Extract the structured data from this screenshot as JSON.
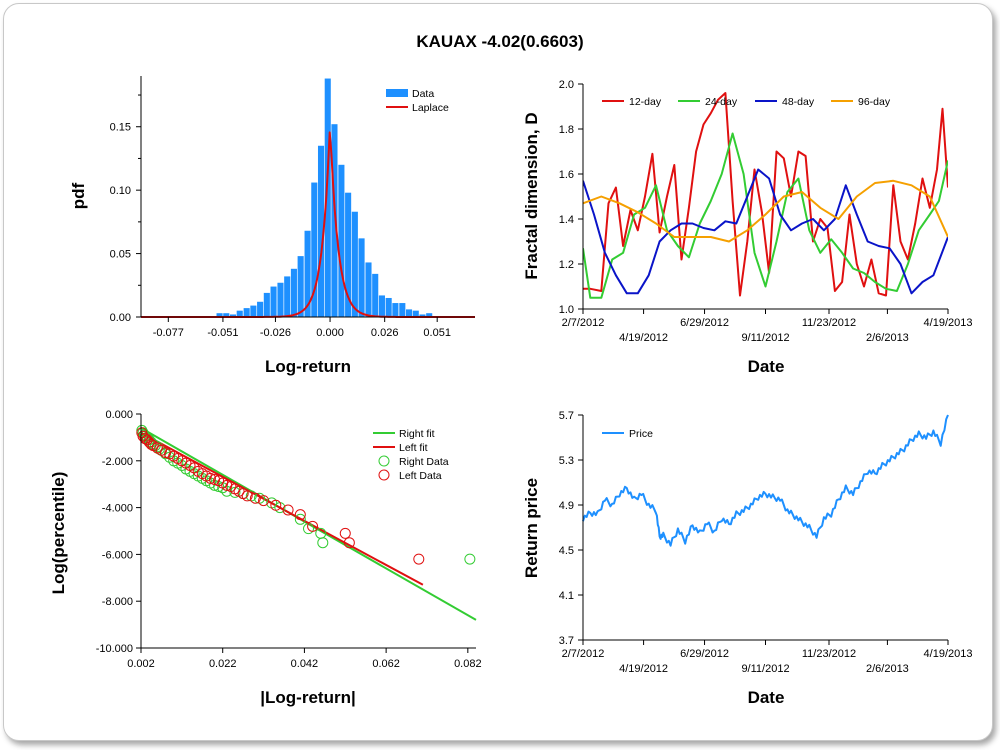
{
  "title": "KAUAX -4.02(0.6603)",
  "colors": {
    "data_bar": "#1e90ff",
    "laplace": "#e01010",
    "d12": "#e01010",
    "d24": "#33cc33",
    "d48": "#0a14c8",
    "d96": "#f5a000",
    "right": "#33cc33",
    "left": "#e01010",
    "price": "#1e90ff"
  },
  "chart_data": [
    {
      "id": "hist",
      "type": "bar",
      "xlabel": "Log-return",
      "ylabel": "pdf",
      "xlim": [
        -0.09,
        0.069
      ],
      "ylim": [
        0,
        0.19
      ],
      "x_ticks": [
        {
          "v": -0.077,
          "label": "-0.077"
        },
        {
          "v": -0.051,
          "label": "-0.051"
        },
        {
          "v": -0.026,
          "label": "-0.026"
        },
        {
          "v": 0.0,
          "label": "0.000"
        },
        {
          "v": 0.026,
          "label": "0.026"
        },
        {
          "v": 0.051,
          "label": "0.051"
        }
      ],
      "y_ticks": [
        {
          "v": 0,
          "label": "0.00"
        },
        {
          "v": 0.05,
          "label": "0.05"
        },
        {
          "v": 0.1,
          "label": "0.10"
        },
        {
          "v": 0.15,
          "label": "0.15"
        }
      ],
      "legend": [
        "Data",
        "Laplace"
      ],
      "bin_width": 0.00322,
      "bins_x": [
        -0.0526,
        -0.0494,
        -0.0462,
        -0.043,
        -0.0397,
        -0.0365,
        -0.0333,
        -0.0301,
        -0.0269,
        -0.0236,
        -0.0204,
        -0.0172,
        -0.014,
        -0.0107,
        -0.0075,
        -0.0043,
        -0.0011,
        0.0021,
        0.0054,
        0.0086,
        0.0118,
        0.015,
        0.0183,
        0.0215,
        0.0247,
        0.0279,
        0.0311,
        0.0344,
        0.0376,
        0.0408,
        0.044,
        0.0472
      ],
      "bins_y": [
        0.003,
        0.003,
        0.002,
        0.005,
        0.007,
        0.009,
        0.012,
        0.019,
        0.024,
        0.027,
        0.032,
        0.038,
        0.048,
        0.068,
        0.106,
        0.135,
        0.188,
        0.152,
        0.12,
        0.098,
        0.083,
        0.062,
        0.043,
        0.034,
        0.017,
        0.015,
        0.011,
        0.011,
        0.006,
        0.005,
        0.002,
        0.003
      ],
      "laplace": {
        "mu": 0.0,
        "b": 0.0033,
        "amp": 0.152
      }
    },
    {
      "id": "fractal",
      "type": "line",
      "xlabel": "Date",
      "ylabel": "Fractal dimension, D",
      "xlim": [
        0,
        1
      ],
      "ylim": [
        1.0,
        2.0
      ],
      "y_ticks": [
        {
          "v": 1.0,
          "label": "1.0"
        },
        {
          "v": 1.2,
          "label": "1.2"
        },
        {
          "v": 1.4,
          "label": "1.4"
        },
        {
          "v": 1.6,
          "label": "1.6"
        },
        {
          "v": 1.8,
          "label": "1.8"
        },
        {
          "v": 2.0,
          "label": "2.0"
        }
      ],
      "x_ticks_top": [
        {
          "v": 0.0,
          "label": "2/7/2012"
        },
        {
          "v": 0.333,
          "label": "6/29/2012"
        },
        {
          "v": 0.674,
          "label": "11/23/2012"
        },
        {
          "v": 1.0,
          "label": "4/19/2013"
        }
      ],
      "x_ticks_bottom": [
        {
          "v": 0.166,
          "label": "4/19/2012"
        },
        {
          "v": 0.5,
          "label": "9/11/2012"
        },
        {
          "v": 0.834,
          "label": "2/6/2013"
        }
      ],
      "series": [
        {
          "name": "12-day",
          "key": "d12",
          "x": [
            0.0,
            0.02,
            0.05,
            0.07,
            0.09,
            0.11,
            0.13,
            0.15,
            0.17,
            0.19,
            0.21,
            0.23,
            0.25,
            0.27,
            0.29,
            0.31,
            0.33,
            0.35,
            0.37,
            0.39,
            0.41,
            0.43,
            0.45,
            0.47,
            0.49,
            0.51,
            0.53,
            0.55,
            0.57,
            0.59,
            0.61,
            0.63,
            0.65,
            0.67,
            0.69,
            0.71,
            0.73,
            0.75,
            0.77,
            0.79,
            0.81,
            0.83,
            0.85,
            0.87,
            0.89,
            0.91,
            0.93,
            0.95,
            0.97,
            0.985,
            1.0
          ],
          "y": [
            1.09,
            1.09,
            1.08,
            1.47,
            1.54,
            1.28,
            1.44,
            1.35,
            1.5,
            1.69,
            1.34,
            1.5,
            1.64,
            1.22,
            1.45,
            1.7,
            1.82,
            1.87,
            1.93,
            1.96,
            1.48,
            1.06,
            1.3,
            1.62,
            1.43,
            1.16,
            1.7,
            1.67,
            1.5,
            1.7,
            1.68,
            1.3,
            1.4,
            1.36,
            1.08,
            1.12,
            1.42,
            1.2,
            1.1,
            1.22,
            1.07,
            1.06,
            1.55,
            1.3,
            1.22,
            1.38,
            1.58,
            1.45,
            1.62,
            1.89,
            1.54
          ]
        },
        {
          "name": "24-day",
          "key": "d24",
          "x": [
            0.0,
            0.02,
            0.05,
            0.08,
            0.11,
            0.14,
            0.17,
            0.2,
            0.23,
            0.26,
            0.29,
            0.32,
            0.35,
            0.38,
            0.41,
            0.44,
            0.47,
            0.5,
            0.53,
            0.56,
            0.59,
            0.62,
            0.65,
            0.68,
            0.71,
            0.74,
            0.77,
            0.8,
            0.83,
            0.86,
            0.89,
            0.92,
            0.95,
            0.975,
            1.0
          ],
          "y": [
            1.27,
            1.05,
            1.05,
            1.22,
            1.25,
            1.42,
            1.45,
            1.55,
            1.35,
            1.28,
            1.23,
            1.38,
            1.48,
            1.6,
            1.78,
            1.6,
            1.25,
            1.1,
            1.3,
            1.52,
            1.58,
            1.35,
            1.25,
            1.31,
            1.25,
            1.18,
            1.16,
            1.12,
            1.09,
            1.08,
            1.2,
            1.35,
            1.42,
            1.48,
            1.66
          ]
        },
        {
          "name": "48-day",
          "key": "d48",
          "x": [
            0.0,
            0.03,
            0.06,
            0.09,
            0.12,
            0.15,
            0.18,
            0.21,
            0.24,
            0.27,
            0.3,
            0.33,
            0.36,
            0.39,
            0.42,
            0.45,
            0.48,
            0.51,
            0.54,
            0.57,
            0.6,
            0.63,
            0.66,
            0.69,
            0.72,
            0.75,
            0.78,
            0.81,
            0.84,
            0.87,
            0.9,
            0.93,
            0.96,
            1.0
          ],
          "y": [
            1.57,
            1.42,
            1.25,
            1.15,
            1.07,
            1.07,
            1.15,
            1.3,
            1.35,
            1.38,
            1.38,
            1.36,
            1.35,
            1.39,
            1.38,
            1.5,
            1.62,
            1.58,
            1.42,
            1.35,
            1.38,
            1.4,
            1.35,
            1.4,
            1.55,
            1.42,
            1.3,
            1.28,
            1.27,
            1.2,
            1.07,
            1.12,
            1.15,
            1.32
          ]
        },
        {
          "name": "96-day",
          "key": "d96",
          "x": [
            0.0,
            0.05,
            0.1,
            0.15,
            0.2,
            0.25,
            0.3,
            0.35,
            0.4,
            0.45,
            0.5,
            0.55,
            0.6,
            0.65,
            0.7,
            0.75,
            0.8,
            0.85,
            0.9,
            0.95,
            1.0
          ],
          "y": [
            1.47,
            1.5,
            1.47,
            1.43,
            1.38,
            1.32,
            1.32,
            1.32,
            1.3,
            1.35,
            1.42,
            1.5,
            1.52,
            1.45,
            1.4,
            1.5,
            1.56,
            1.57,
            1.55,
            1.5,
            1.32
          ]
        }
      ]
    },
    {
      "id": "tail",
      "type": "scatter",
      "xlabel": "|Log-return|",
      "ylabel": "Log(percentile)",
      "xlim": [
        0.002,
        0.084
      ],
      "ylim": [
        -10,
        0
      ],
      "x_ticks": [
        {
          "v": 0.002,
          "label": "0.002"
        },
        {
          "v": 0.022,
          "label": "0.022"
        },
        {
          "v": 0.042,
          "label": "0.042"
        },
        {
          "v": 0.062,
          "label": "0.062"
        },
        {
          "v": 0.082,
          "label": "0.082"
        }
      ],
      "y_ticks": [
        {
          "v": 0,
          "label": "0.000"
        },
        {
          "v": -2,
          "label": "-2.000"
        },
        {
          "v": -4,
          "label": "-4.000"
        },
        {
          "v": -6,
          "label": "-6.000"
        },
        {
          "v": -8,
          "label": "-8.000"
        },
        {
          "v": -10,
          "label": "-10.000"
        }
      ],
      "legend": [
        "Right fit",
        "Left fit",
        "Right Data",
        "Left Data"
      ],
      "right_fit": {
        "x": [
          0.002,
          0.084
        ],
        "y": [
          -0.6,
          -8.8
        ]
      },
      "left_fit": {
        "x": [
          0.002,
          0.071
        ],
        "y": [
          -0.8,
          -7.3
        ]
      },
      "right_data": {
        "x": [
          0.0022,
          0.0025,
          0.0028,
          0.003,
          0.0035,
          0.004,
          0.0045,
          0.005,
          0.0055,
          0.006,
          0.0065,
          0.007,
          0.008,
          0.009,
          0.01,
          0.011,
          0.012,
          0.013,
          0.014,
          0.015,
          0.016,
          0.017,
          0.018,
          0.019,
          0.02,
          0.021,
          0.022,
          0.023,
          0.025,
          0.027,
          0.029,
          0.031,
          0.034,
          0.036,
          0.041,
          0.043,
          0.046,
          0.0465,
          0.0825
        ],
        "y": [
          -0.7,
          -0.8,
          -0.9,
          -0.95,
          -1.0,
          -1.1,
          -1.2,
          -1.3,
          -1.35,
          -1.4,
          -1.5,
          -1.55,
          -1.7,
          -1.85,
          -2.0,
          -2.1,
          -2.2,
          -2.35,
          -2.45,
          -2.55,
          -2.65,
          -2.75,
          -2.85,
          -2.95,
          -3.05,
          -3.1,
          -3.15,
          -3.3,
          -3.35,
          -3.4,
          -3.5,
          -3.6,
          -3.8,
          -4.0,
          -4.5,
          -4.9,
          -5.1,
          -5.5,
          -6.2
        ]
      },
      "left_data": {
        "x": [
          0.0022,
          0.0025,
          0.003,
          0.0035,
          0.004,
          0.0045,
          0.005,
          0.006,
          0.007,
          0.008,
          0.009,
          0.01,
          0.011,
          0.012,
          0.013,
          0.014,
          0.015,
          0.016,
          0.017,
          0.018,
          0.019,
          0.02,
          0.021,
          0.022,
          0.023,
          0.024,
          0.025,
          0.026,
          0.027,
          0.028,
          0.03,
          0.032,
          0.035,
          0.038,
          0.041,
          0.044,
          0.052,
          0.053,
          0.07
        ],
        "y": [
          -0.8,
          -0.95,
          -1.05,
          -1.1,
          -1.2,
          -1.3,
          -1.35,
          -1.45,
          -1.55,
          -1.65,
          -1.7,
          -1.8,
          -1.9,
          -2.0,
          -2.1,
          -2.2,
          -2.3,
          -2.45,
          -2.55,
          -2.65,
          -2.75,
          -2.8,
          -2.85,
          -2.95,
          -3.05,
          -3.1,
          -3.2,
          -3.3,
          -3.4,
          -3.5,
          -3.6,
          -3.7,
          -3.9,
          -4.1,
          -4.3,
          -4.8,
          -5.1,
          -5.5,
          -6.2
        ]
      }
    },
    {
      "id": "price",
      "type": "line",
      "xlabel": "Date",
      "ylabel": "Return price",
      "xlim": [
        0,
        1
      ],
      "ylim": [
        3.7,
        5.7
      ],
      "y_ticks": [
        {
          "v": 3.7,
          "label": "3.7"
        },
        {
          "v": 4.1,
          "label": "4.1"
        },
        {
          "v": 4.5,
          "label": "4.5"
        },
        {
          "v": 4.9,
          "label": "4.9"
        },
        {
          "v": 5.3,
          "label": "5.3"
        },
        {
          "v": 5.7,
          "label": "5.7"
        }
      ],
      "x_ticks_top": [
        {
          "v": 0.0,
          "label": "2/7/2012"
        },
        {
          "v": 0.333,
          "label": "6/29/2012"
        },
        {
          "v": 0.674,
          "label": "11/23/2012"
        },
        {
          "v": 1.0,
          "label": "4/19/2013"
        }
      ],
      "x_ticks_bottom": [
        {
          "v": 0.166,
          "label": "4/19/2012"
        },
        {
          "v": 0.5,
          "label": "9/11/2012"
        },
        {
          "v": 0.834,
          "label": "2/6/2013"
        }
      ],
      "legend": [
        "Price"
      ],
      "series": [
        {
          "name": "Price",
          "x": [
            0.0,
            0.02,
            0.04,
            0.06,
            0.08,
            0.1,
            0.12,
            0.14,
            0.16,
            0.18,
            0.2,
            0.21,
            0.22,
            0.24,
            0.26,
            0.28,
            0.3,
            0.32,
            0.34,
            0.36,
            0.38,
            0.4,
            0.42,
            0.44,
            0.46,
            0.48,
            0.5,
            0.52,
            0.54,
            0.56,
            0.58,
            0.6,
            0.62,
            0.64,
            0.66,
            0.68,
            0.7,
            0.72,
            0.74,
            0.76,
            0.78,
            0.8,
            0.82,
            0.84,
            0.86,
            0.88,
            0.9,
            0.92,
            0.94,
            0.96,
            0.98,
            1.0
          ],
          "y": [
            4.78,
            4.83,
            4.82,
            4.95,
            4.9,
            5.0,
            5.05,
            4.95,
            5.0,
            4.9,
            4.85,
            4.62,
            4.63,
            4.55,
            4.68,
            4.58,
            4.72,
            4.65,
            4.74,
            4.66,
            4.78,
            4.73,
            4.82,
            4.85,
            4.9,
            4.97,
            5.0,
            4.97,
            4.95,
            4.85,
            4.8,
            4.75,
            4.7,
            4.62,
            4.78,
            4.82,
            4.95,
            5.05,
            5.0,
            5.1,
            5.2,
            5.18,
            5.25,
            5.3,
            5.35,
            5.4,
            5.48,
            5.53,
            5.5,
            5.55,
            5.45,
            5.7
          ]
        }
      ]
    }
  ]
}
